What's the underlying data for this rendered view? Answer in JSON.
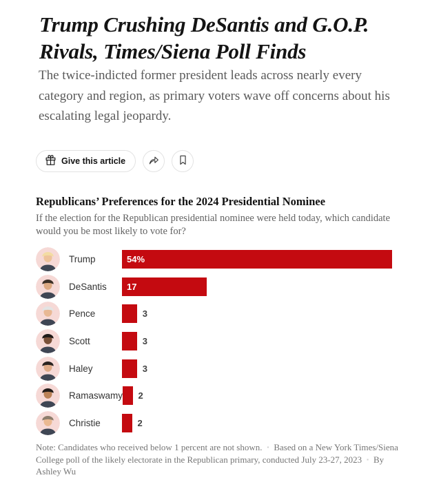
{
  "article": {
    "headline": "Trump Crushing DeSantis and G.O.P. Rivals, Times/Siena Poll Finds",
    "deck": "The twice-indicted former president leads across nearly every category and region, as primary voters wave off concerns about his escalating legal jeopardy.",
    "toolbar": {
      "give_label": "Give this article",
      "icons": [
        "gift-icon",
        "share-icon",
        "bookmark-icon"
      ]
    }
  },
  "chart_data": {
    "type": "bar",
    "orientation": "horizontal",
    "title": "Republicans’ Preferences for the 2024 Presidential Nominee",
    "subtitle": "If the election for the Republican presidential nominee were held today, which candidate would you be most likely to vote for?",
    "categories": [
      "Trump",
      "DeSantis",
      "Pence",
      "Scott",
      "Haley",
      "Ramaswamy",
      "Christie"
    ],
    "values": [
      54,
      17,
      3,
      3,
      3,
      2,
      2
    ],
    "value_labels": [
      "54%",
      "17",
      "3",
      "3",
      "3",
      "2",
      "2"
    ],
    "xlim": [
      0,
      54
    ],
    "grid": false,
    "legend": "none",
    "bar_color": "#c40a10",
    "avatar_bg": "#f6d9d6",
    "avatar_suit": "#3f4654",
    "avatars": [
      {
        "skin": "#eec39a",
        "hair": "#f3dca3"
      },
      {
        "skin": "#dda982",
        "hair": "#3c2f26"
      },
      {
        "skin": "#e8b894",
        "hair": "#e3e3e3"
      },
      {
        "skin": "#7a5038",
        "hair": "#201b18"
      },
      {
        "skin": "#dfab88",
        "hair": "#2a2320"
      },
      {
        "skin": "#bb8257",
        "hair": "#211c19"
      },
      {
        "skin": "#eab992",
        "hair": "#8d7d6c"
      }
    ]
  },
  "note": {
    "segments": [
      "Note: Candidates who received below 1 percent are not shown.",
      "Based on a New York Times/Siena College poll of the likely electorate in the Republican primary, conducted July 23-27, 2023",
      "By Ashley Wu"
    ]
  }
}
